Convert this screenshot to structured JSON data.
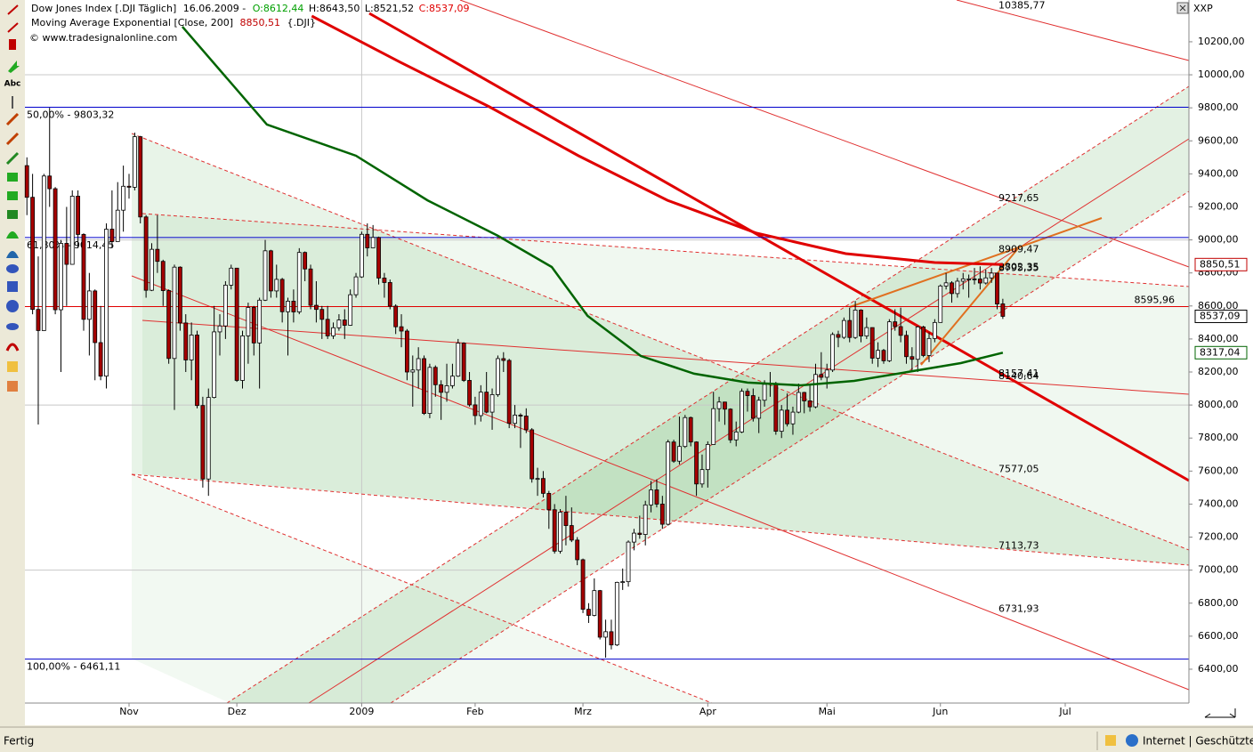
{
  "chart_data": {
    "type": "candlestick",
    "xlim": [
      -0.35,
      204.8
    ],
    "ylim": [
      6195,
      10453
    ],
    "xticks": [
      {
        "value": 18,
        "label": "Nov"
      },
      {
        "value": 37,
        "label": "Dez"
      },
      {
        "value": 59,
        "label": "2009"
      },
      {
        "value": 79,
        "label": "Feb"
      },
      {
        "value": 98,
        "label": "Mrz"
      },
      {
        "value": 120,
        "label": "Apr"
      },
      {
        "value": 141,
        "label": "Mai"
      },
      {
        "value": 161,
        "label": "Jun"
      },
      {
        "value": 183,
        "label": "Jul"
      }
    ],
    "yticks": [
      {
        "value": 6400,
        "label": "6400,00"
      },
      {
        "value": 6600,
        "label": "6600,00"
      },
      {
        "value": 6800,
        "label": "6800,00"
      },
      {
        "value": 7000,
        "label": "7000,00"
      },
      {
        "value": 7200,
        "label": "7200,00"
      },
      {
        "value": 7400,
        "label": "7400,00"
      },
      {
        "value": 7600,
        "label": "7600,00"
      },
      {
        "value": 7800,
        "label": "7800,00"
      },
      {
        "value": 8000,
        "label": "8000,00"
      },
      {
        "value": 8200,
        "label": "8200,00"
      },
      {
        "value": 8400,
        "label": "8400,00"
      },
      {
        "value": 8600,
        "label": "8600,00"
      },
      {
        "value": 8800,
        "label": "8800,00"
      },
      {
        "value": 9000,
        "label": "9000,00"
      },
      {
        "value": 9200,
        "label": "9200,00"
      },
      {
        "value": 9400,
        "label": "9400,00"
      },
      {
        "value": 9600,
        "label": "9600,00"
      },
      {
        "value": 9800,
        "label": "9800,00"
      },
      {
        "value": 10000,
        "label": "10000,00"
      },
      {
        "value": 10200,
        "label": "10200,00"
      }
    ],
    "up_color": "#ffffff",
    "down_color": "#a50000",
    "candles": [
      [
        9450,
        9500,
        9150,
        9258
      ],
      [
        9258,
        9400,
        8550,
        8579
      ],
      [
        8579,
        8900,
        7882,
        8451
      ],
      [
        8451,
        9400,
        8451,
        9387
      ],
      [
        9387,
        9800,
        9200,
        9310
      ],
      [
        9310,
        9320,
        8550,
        8577
      ],
      [
        8577,
        9000,
        8200,
        8979
      ],
      [
        8979,
        9200,
        8600,
        8852
      ],
      [
        8852,
        9300,
        8850,
        9265
      ],
      [
        9265,
        9300,
        8950,
        9033
      ],
      [
        9033,
        9040,
        8450,
        8519
      ],
      [
        8519,
        8800,
        8300,
        8691
      ],
      [
        8691,
        8700,
        8150,
        8378
      ],
      [
        8378,
        8600,
        8150,
        8175
      ],
      [
        8175,
        9100,
        8100,
        9065
      ],
      [
        9065,
        9300,
        8950,
        8990
      ],
      [
        8990,
        9350,
        8990,
        9180
      ],
      [
        9180,
        9450,
        9050,
        9325
      ],
      [
        9325,
        9400,
        9250,
        9319
      ],
      [
        9319,
        9650,
        9300,
        9625
      ],
      [
        9625,
        9630,
        9100,
        9139
      ],
      [
        9139,
        9150,
        8650,
        8695
      ],
      [
        8695,
        8980,
        8690,
        8943
      ],
      [
        8943,
        9150,
        8800,
        8870
      ],
      [
        8870,
        8880,
        8600,
        8693
      ],
      [
        8693,
        8700,
        8250,
        8282
      ],
      [
        8282,
        8850,
        7970,
        8835
      ],
      [
        8835,
        8840,
        8450,
        8497
      ],
      [
        8497,
        8550,
        8200,
        8273
      ],
      [
        8273,
        8500,
        8150,
        8424
      ],
      [
        8424,
        8450,
        7980,
        7997
      ],
      [
        7997,
        8050,
        7500,
        7552
      ],
      [
        7552,
        8100,
        7450,
        8046
      ],
      [
        8046,
        8600,
        8040,
        8443
      ],
      [
        8443,
        8550,
        8300,
        8479
      ],
      [
        8479,
        8750,
        8400,
        8726
      ],
      [
        8726,
        8850,
        8700,
        8829
      ],
      [
        8829,
        8830,
        8140,
        8149
      ],
      [
        8149,
        8450,
        8100,
        8419
      ],
      [
        8419,
        8620,
        8250,
        8591
      ],
      [
        8591,
        8600,
        8300,
        8376
      ],
      [
        8376,
        8650,
        8100,
        8635
      ],
      [
        8635,
        9000,
        8630,
        8934
      ],
      [
        8934,
        8940,
        8650,
        8691
      ],
      [
        8691,
        8850,
        8650,
        8761
      ],
      [
        8761,
        8770,
        8500,
        8565
      ],
      [
        8565,
        8650,
        8300,
        8629
      ],
      [
        8629,
        8700,
        8500,
        8564
      ],
      [
        8564,
        8950,
        8550,
        8924
      ],
      [
        8924,
        8930,
        8750,
        8824
      ],
      [
        8824,
        8850,
        8580,
        8604
      ],
      [
        8604,
        8750,
        8500,
        8579
      ],
      [
        8579,
        8600,
        8400,
        8519
      ],
      [
        8519,
        8600,
        8400,
        8419
      ],
      [
        8419,
        8500,
        8400,
        8468
      ],
      [
        8468,
        8550,
        8450,
        8515
      ],
      [
        8515,
        8580,
        8400,
        8483
      ],
      [
        8483,
        8700,
        8480,
        8668
      ],
      [
        8668,
        8800,
        8650,
        8776
      ],
      [
        8776,
        9050,
        8770,
        9034
      ],
      [
        9034,
        9100,
        8900,
        8952
      ],
      [
        8952,
        9090,
        8950,
        9015
      ],
      [
        9015,
        9020,
        8730,
        8769
      ],
      [
        8769,
        8800,
        8650,
        8742
      ],
      [
        8742,
        8760,
        8580,
        8599
      ],
      [
        8599,
        8610,
        8430,
        8474
      ],
      [
        8474,
        8550,
        8350,
        8448
      ],
      [
        8448,
        8460,
        8150,
        8200
      ],
      [
        8200,
        8300,
        7990,
        8212
      ],
      [
        8212,
        8350,
        8100,
        8281
      ],
      [
        8281,
        8300,
        7940,
        7949
      ],
      [
        7949,
        8250,
        7920,
        8228
      ],
      [
        8228,
        8240,
        8050,
        8123
      ],
      [
        8123,
        8150,
        7910,
        8077
      ],
      [
        8077,
        8250,
        8020,
        8117
      ],
      [
        8117,
        8250,
        8100,
        8175
      ],
      [
        8175,
        8400,
        8170,
        8375
      ],
      [
        8375,
        8380,
        8140,
        8149
      ],
      [
        8149,
        8200,
        7990,
        8001
      ],
      [
        8001,
        8050,
        7880,
        7936
      ],
      [
        7936,
        8120,
        7900,
        8078
      ],
      [
        8078,
        8200,
        7950,
        7957
      ],
      [
        7957,
        8100,
        7850,
        8063
      ],
      [
        8063,
        8300,
        8050,
        8281
      ],
      [
        8281,
        8320,
        8200,
        8270
      ],
      [
        8270,
        8280,
        7860,
        7889
      ],
      [
        7889,
        8000,
        7860,
        7939
      ],
      [
        7939,
        7950,
        7740,
        7933
      ],
      [
        7933,
        7980,
        7830,
        7850
      ],
      [
        7850,
        7860,
        7530,
        7553
      ],
      [
        7553,
        7620,
        7450,
        7555
      ],
      [
        7555,
        7600,
        7440,
        7465
      ],
      [
        7465,
        7480,
        7250,
        7366
      ],
      [
        7366,
        7400,
        7100,
        7115
      ],
      [
        7115,
        7370,
        7100,
        7351
      ],
      [
        7351,
        7450,
        7150,
        7270
      ],
      [
        7270,
        7380,
        7170,
        7182
      ],
      [
        7182,
        7200,
        7030,
        7063
      ],
      [
        7063,
        7070,
        6740,
        6763
      ],
      [
        6763,
        6800,
        6680,
        6726
      ],
      [
        6726,
        6950,
        6720,
        6876
      ],
      [
        6876,
        6880,
        6580,
        6594
      ],
      [
        6594,
        6700,
        6470,
        6627
      ],
      [
        6627,
        6700,
        6520,
        6547
      ],
      [
        6547,
        6930,
        6540,
        6926
      ],
      [
        6926,
        7010,
        6880,
        6930
      ],
      [
        6930,
        7180,
        6900,
        7170
      ],
      [
        7170,
        7250,
        7120,
        7224
      ],
      [
        7224,
        7330,
        7190,
        7216
      ],
      [
        7216,
        7420,
        7150,
        7395
      ],
      [
        7395,
        7540,
        7350,
        7486
      ],
      [
        7486,
        7550,
        7380,
        7400
      ],
      [
        7400,
        7450,
        7250,
        7278
      ],
      [
        7278,
        7790,
        7270,
        7776
      ],
      [
        7776,
        7790,
        7650,
        7660
      ],
      [
        7660,
        7930,
        7640,
        7749
      ],
      [
        7749,
        7940,
        7740,
        7924
      ],
      [
        7924,
        7930,
        7750,
        7776
      ],
      [
        7776,
        7780,
        7450,
        7522
      ],
      [
        7522,
        7700,
        7500,
        7609
      ],
      [
        7609,
        7780,
        7500,
        7761
      ],
      [
        7761,
        8080,
        7760,
        7978
      ],
      [
        7978,
        8050,
        7900,
        8018
      ],
      [
        8018,
        8020,
        7880,
        7975
      ],
      [
        7975,
        7980,
        7770,
        7789
      ],
      [
        7789,
        7900,
        7750,
        7837
      ],
      [
        7837,
        8100,
        7830,
        8083
      ],
      [
        8083,
        8100,
        7960,
        8057
      ],
      [
        8057,
        8100,
        7900,
        7920
      ],
      [
        7920,
        8050,
        7830,
        8029
      ],
      [
        8029,
        8150,
        7990,
        8125
      ],
      [
        8125,
        8200,
        8050,
        8131
      ],
      [
        8131,
        8140,
        7820,
        7841
      ],
      [
        7841,
        8000,
        7800,
        7969
      ],
      [
        7969,
        8070,
        7870,
        7886
      ],
      [
        7886,
        7990,
        7820,
        7957
      ],
      [
        7957,
        8130,
        7950,
        8076
      ],
      [
        8076,
        8080,
        7950,
        8025
      ],
      [
        8025,
        8120,
        7960,
        7989
      ],
      [
        7989,
        8250,
        7980,
        8185
      ],
      [
        8185,
        8320,
        8150,
        8168
      ],
      [
        8168,
        8250,
        8100,
        8212
      ],
      [
        8212,
        8440,
        8200,
        8427
      ],
      [
        8427,
        8450,
        8350,
        8410
      ],
      [
        8410,
        8530,
        8400,
        8512
      ],
      [
        8512,
        8590,
        8380,
        8409
      ],
      [
        8409,
        8630,
        8400,
        8575
      ],
      [
        8575,
        8580,
        8380,
        8418
      ],
      [
        8418,
        8530,
        8400,
        8469
      ],
      [
        8469,
        8470,
        8250,
        8284
      ],
      [
        8284,
        8380,
        8230,
        8331
      ],
      [
        8331,
        8340,
        8250,
        8268
      ],
      [
        8268,
        8520,
        8260,
        8504
      ],
      [
        8504,
        8580,
        8450,
        8475
      ],
      [
        8475,
        8590,
        8380,
        8422
      ],
      [
        8422,
        8450,
        8250,
        8293
      ],
      [
        8293,
        8350,
        8200,
        8277
      ],
      [
        8277,
        8480,
        8200,
        8473
      ],
      [
        8473,
        8480,
        8290,
        8300
      ],
      [
        8300,
        8440,
        8260,
        8403
      ],
      [
        8403,
        8520,
        8380,
        8500
      ],
      [
        8500,
        8730,
        8500,
        8721
      ],
      [
        8721,
        8800,
        8700,
        8740
      ],
      [
        8740,
        8750,
        8620,
        8675
      ],
      [
        8675,
        8770,
        8650,
        8750
      ],
      [
        8750,
        8800,
        8700,
        8764
      ],
      [
        8764,
        8790,
        8650,
        8764
      ],
      [
        8764,
        8830,
        8730,
        8763
      ],
      [
        8763,
        8840,
        8700,
        8739
      ],
      [
        8739,
        8820,
        8730,
        8770
      ],
      [
        8770,
        8830,
        8740,
        8799
      ],
      [
        8799,
        8800,
        8580,
        8612
      ],
      [
        8612.44,
        8643.5,
        8521.52,
        8537.09
      ]
    ],
    "series": [
      {
        "color": "#006400",
        "width": 2.5,
        "x": [
          27.4,
          42.3,
          58,
          70.6,
          83,
          92.5,
          98.8,
          108.2,
          117.6,
          127,
          136.4,
          145.8,
          155.2,
          164.6,
          172
        ],
        "values": [
          10292,
          9699,
          9510,
          9240,
          9025,
          8836,
          8540,
          8297,
          8190,
          8136,
          8119,
          8146,
          8200,
          8254,
          8317.04
        ]
      },
      {
        "color": "#e00000",
        "width": 3,
        "x": [
          50.2,
          65.8,
          81.5,
          97.2,
          112.9,
          128.6,
          144.3,
          160,
          172
        ],
        "values": [
          10356,
          10076,
          9806,
          9510,
          9240,
          9041,
          8917,
          8863,
          8850.51
        ]
      }
    ],
    "fib_levels": [
      {
        "value": 9803.32,
        "label": "50,00% - 9803,32",
        "color": "#0000cc"
      },
      {
        "value": 9014.45,
        "label": "61,80% - 9014,45",
        "color": "#0000cc"
      },
      {
        "value": 6461.11,
        "label": "100,00% - 6461,11",
        "color": "#0000cc"
      }
    ],
    "hlines": [
      {
        "value": 8595.96,
        "label": "8595,96",
        "color": "#e00000"
      }
    ],
    "level_labels": [
      {
        "value": 10385.77,
        "label": "10385,77"
      },
      {
        "value": 9217.65,
        "label": "9217,65"
      },
      {
        "value": 8909.47,
        "label": "8909,47"
      },
      {
        "value": 8802.35,
        "label": "8802,35"
      },
      {
        "value": 8795.35,
        "label": "8795,35"
      },
      {
        "value": 8157.41,
        "label": "8157,41"
      },
      {
        "value": 8140.64,
        "label": "8140,64"
      },
      {
        "value": 7577.05,
        "label": "7577,05"
      },
      {
        "value": 7113.73,
        "label": "7113,73"
      },
      {
        "value": 6731.93,
        "label": "6731,93"
      }
    ],
    "price_markers": [
      {
        "value": 8850.51,
        "label": "8850,51",
        "color": "#c00000"
      },
      {
        "value": 8537.09,
        "label": "8537,09",
        "color": "#000000"
      },
      {
        "value": 8317.04,
        "label": "8317,04",
        "color": "#006400"
      }
    ]
  },
  "ui": {
    "legend_name": "Dow Jones Index [.DJI  Täglich]",
    "legend_date": "16.06.2009 -",
    "legend_open": "O:8612,44",
    "legend_high": "H:8643,50",
    "legend_low": "L:8521,52",
    "legend_close": "C:8537,09",
    "ma_name": "Moving Average Exponential [Close, 200]",
    "ma_value": "8850,51",
    "ma_symbol": "{.DJI}",
    "source": "© www.tradesignalonline.com",
    "symbol_box": "XXP",
    "toolbar_text": "Abc",
    "status_left": "Fertig",
    "status_right": "Internet | Geschützter Modus: Inaktiv"
  }
}
